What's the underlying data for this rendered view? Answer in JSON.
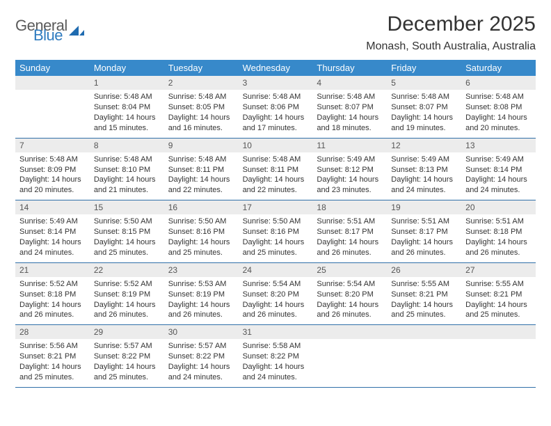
{
  "logo": {
    "text1": "General",
    "text2": "Blue",
    "color_general": "#5a5a5a",
    "color_blue": "#2f7bbf",
    "shape_color": "#1f6bb0"
  },
  "title": "December 2025",
  "location": "Monash, South Australia, Australia",
  "title_fontsize": 30,
  "location_fontsize": 16,
  "header_bg": "#3789ca",
  "header_fg": "#ffffff",
  "daynum_bg": "#ececec",
  "week_border": "#2f6fa8",
  "body_fontsize": 11,
  "days_of_week": [
    "Sunday",
    "Monday",
    "Tuesday",
    "Wednesday",
    "Thursday",
    "Friday",
    "Saturday"
  ],
  "weeks": [
    [
      null,
      {
        "n": "1",
        "sr": "Sunrise: 5:48 AM",
        "ss": "Sunset: 8:04 PM",
        "dl": "Daylight: 14 hours and 15 minutes."
      },
      {
        "n": "2",
        "sr": "Sunrise: 5:48 AM",
        "ss": "Sunset: 8:05 PM",
        "dl": "Daylight: 14 hours and 16 minutes."
      },
      {
        "n": "3",
        "sr": "Sunrise: 5:48 AM",
        "ss": "Sunset: 8:06 PM",
        "dl": "Daylight: 14 hours and 17 minutes."
      },
      {
        "n": "4",
        "sr": "Sunrise: 5:48 AM",
        "ss": "Sunset: 8:07 PM",
        "dl": "Daylight: 14 hours and 18 minutes."
      },
      {
        "n": "5",
        "sr": "Sunrise: 5:48 AM",
        "ss": "Sunset: 8:07 PM",
        "dl": "Daylight: 14 hours and 19 minutes."
      },
      {
        "n": "6",
        "sr": "Sunrise: 5:48 AM",
        "ss": "Sunset: 8:08 PM",
        "dl": "Daylight: 14 hours and 20 minutes."
      }
    ],
    [
      {
        "n": "7",
        "sr": "Sunrise: 5:48 AM",
        "ss": "Sunset: 8:09 PM",
        "dl": "Daylight: 14 hours and 20 minutes."
      },
      {
        "n": "8",
        "sr": "Sunrise: 5:48 AM",
        "ss": "Sunset: 8:10 PM",
        "dl": "Daylight: 14 hours and 21 minutes."
      },
      {
        "n": "9",
        "sr": "Sunrise: 5:48 AM",
        "ss": "Sunset: 8:11 PM",
        "dl": "Daylight: 14 hours and 22 minutes."
      },
      {
        "n": "10",
        "sr": "Sunrise: 5:48 AM",
        "ss": "Sunset: 8:11 PM",
        "dl": "Daylight: 14 hours and 22 minutes."
      },
      {
        "n": "11",
        "sr": "Sunrise: 5:49 AM",
        "ss": "Sunset: 8:12 PM",
        "dl": "Daylight: 14 hours and 23 minutes."
      },
      {
        "n": "12",
        "sr": "Sunrise: 5:49 AM",
        "ss": "Sunset: 8:13 PM",
        "dl": "Daylight: 14 hours and 24 minutes."
      },
      {
        "n": "13",
        "sr": "Sunrise: 5:49 AM",
        "ss": "Sunset: 8:14 PM",
        "dl": "Daylight: 14 hours and 24 minutes."
      }
    ],
    [
      {
        "n": "14",
        "sr": "Sunrise: 5:49 AM",
        "ss": "Sunset: 8:14 PM",
        "dl": "Daylight: 14 hours and 24 minutes."
      },
      {
        "n": "15",
        "sr": "Sunrise: 5:50 AM",
        "ss": "Sunset: 8:15 PM",
        "dl": "Daylight: 14 hours and 25 minutes."
      },
      {
        "n": "16",
        "sr": "Sunrise: 5:50 AM",
        "ss": "Sunset: 8:16 PM",
        "dl": "Daylight: 14 hours and 25 minutes."
      },
      {
        "n": "17",
        "sr": "Sunrise: 5:50 AM",
        "ss": "Sunset: 8:16 PM",
        "dl": "Daylight: 14 hours and 25 minutes."
      },
      {
        "n": "18",
        "sr": "Sunrise: 5:51 AM",
        "ss": "Sunset: 8:17 PM",
        "dl": "Daylight: 14 hours and 26 minutes."
      },
      {
        "n": "19",
        "sr": "Sunrise: 5:51 AM",
        "ss": "Sunset: 8:17 PM",
        "dl": "Daylight: 14 hours and 26 minutes."
      },
      {
        "n": "20",
        "sr": "Sunrise: 5:51 AM",
        "ss": "Sunset: 8:18 PM",
        "dl": "Daylight: 14 hours and 26 minutes."
      }
    ],
    [
      {
        "n": "21",
        "sr": "Sunrise: 5:52 AM",
        "ss": "Sunset: 8:18 PM",
        "dl": "Daylight: 14 hours and 26 minutes."
      },
      {
        "n": "22",
        "sr": "Sunrise: 5:52 AM",
        "ss": "Sunset: 8:19 PM",
        "dl": "Daylight: 14 hours and 26 minutes."
      },
      {
        "n": "23",
        "sr": "Sunrise: 5:53 AM",
        "ss": "Sunset: 8:19 PM",
        "dl": "Daylight: 14 hours and 26 minutes."
      },
      {
        "n": "24",
        "sr": "Sunrise: 5:54 AM",
        "ss": "Sunset: 8:20 PM",
        "dl": "Daylight: 14 hours and 26 minutes."
      },
      {
        "n": "25",
        "sr": "Sunrise: 5:54 AM",
        "ss": "Sunset: 8:20 PM",
        "dl": "Daylight: 14 hours and 26 minutes."
      },
      {
        "n": "26",
        "sr": "Sunrise: 5:55 AM",
        "ss": "Sunset: 8:21 PM",
        "dl": "Daylight: 14 hours and 25 minutes."
      },
      {
        "n": "27",
        "sr": "Sunrise: 5:55 AM",
        "ss": "Sunset: 8:21 PM",
        "dl": "Daylight: 14 hours and 25 minutes."
      }
    ],
    [
      {
        "n": "28",
        "sr": "Sunrise: 5:56 AM",
        "ss": "Sunset: 8:21 PM",
        "dl": "Daylight: 14 hours and 25 minutes."
      },
      {
        "n": "29",
        "sr": "Sunrise: 5:57 AM",
        "ss": "Sunset: 8:22 PM",
        "dl": "Daylight: 14 hours and 25 minutes."
      },
      {
        "n": "30",
        "sr": "Sunrise: 5:57 AM",
        "ss": "Sunset: 8:22 PM",
        "dl": "Daylight: 14 hours and 24 minutes."
      },
      {
        "n": "31",
        "sr": "Sunrise: 5:58 AM",
        "ss": "Sunset: 8:22 PM",
        "dl": "Daylight: 14 hours and 24 minutes."
      },
      null,
      null,
      null
    ]
  ]
}
